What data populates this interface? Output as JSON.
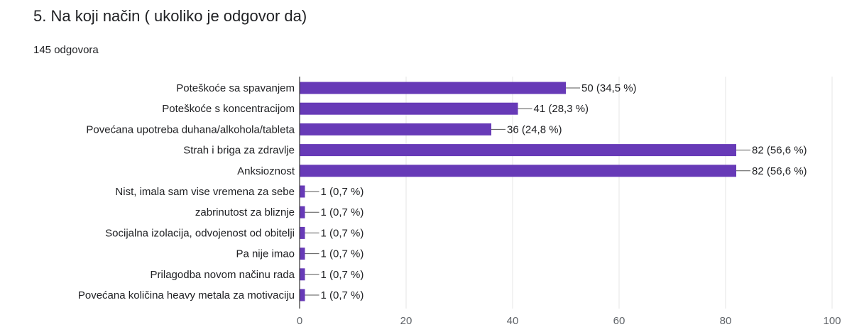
{
  "question": {
    "title": "5. Na koji način ( ukoliko je odgovor da)",
    "response_count": "145 odgovora"
  },
  "colors": {
    "bar": "#673ab7",
    "grid": "#e6e6e6",
    "axis": "#333333",
    "text": "#202124",
    "tick_text": "#5f6368"
  },
  "chart_data": {
    "type": "bar",
    "orientation": "horizontal",
    "categories": [
      "Poteškoće sa spavanjem",
      "Poteškoće s koncentracijom",
      "Povećana upotreba duhana/alkohola/tableta",
      "Strah i briga za zdravlje",
      "Anksioznost",
      "Nist, imala sam vise vremena za sebe",
      "zabrinutost za bliznje",
      "Socijalna izolacija, odvojenost od obitelji",
      "Pa nije imao",
      "Prilagodba novom načinu rada",
      "Povećana količina heavy metala za motivaciju"
    ],
    "values": [
      50,
      41,
      36,
      82,
      82,
      1,
      1,
      1,
      1,
      1,
      1
    ],
    "data_labels": [
      "50 (34,5 %)",
      "41 (28,3 %)",
      "36 (24,8 %)",
      "82 (56,6 %)",
      "82 (56,6 %)",
      "1 (0,7 %)",
      "1 (0,7 %)",
      "1 (0,7 %)",
      "1 (0,7 %)",
      "1 (0,7 %)",
      "1 (0,7 %)"
    ],
    "xlim": [
      0,
      100
    ],
    "xticks": [
      0,
      20,
      40,
      60,
      80,
      100
    ],
    "xlabel": "",
    "ylabel": "",
    "grid": true,
    "legend": "none"
  }
}
